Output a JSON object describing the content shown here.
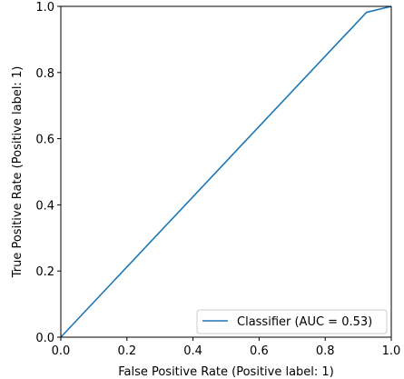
{
  "chart_data": {
    "type": "line",
    "title": "",
    "xlabel": "False Positive Rate (Positive label: 1)",
    "ylabel": "True Positive Rate (Positive label: 1)",
    "xlim": [
      0.0,
      1.0
    ],
    "ylim": [
      0.0,
      1.0
    ],
    "x_ticks": [
      "0.0",
      "0.2",
      "0.4",
      "0.6",
      "0.8",
      "1.0"
    ],
    "y_ticks": [
      "0.0",
      "0.2",
      "0.4",
      "0.6",
      "0.8",
      "1.0"
    ],
    "grid": false,
    "legend_position": "lower-right",
    "series": [
      {
        "name": "Classifier (AUC = 0.53)",
        "color": "#1f77b4",
        "x": [
          0.0,
          0.925,
          1.0
        ],
        "y": [
          0.0,
          0.982,
          1.0
        ]
      }
    ]
  }
}
